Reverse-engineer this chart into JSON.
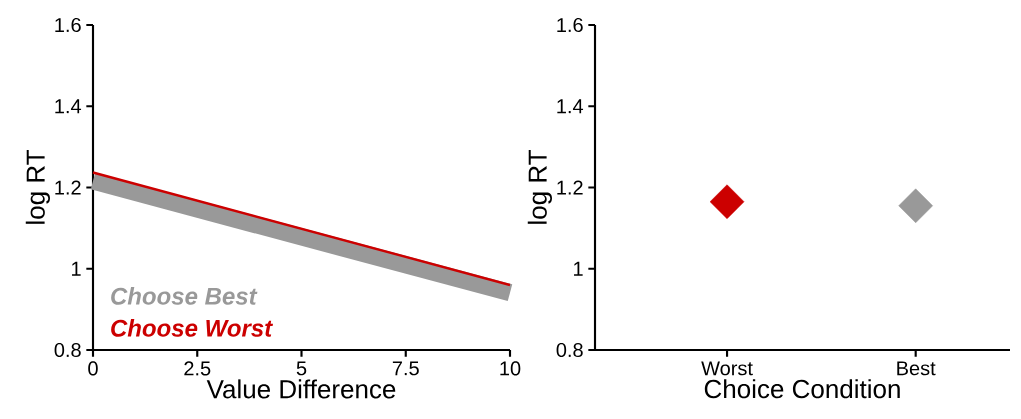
{
  "chart_data": [
    {
      "type": "line",
      "xlabel": "Value Difference",
      "ylabel": "log RT",
      "x": [
        0,
        10
      ],
      "xlim": [
        0,
        10
      ],
      "ylim": [
        0.8,
        1.6
      ],
      "xticks": [
        0,
        2.5,
        5,
        7.5,
        10
      ],
      "yticks": [
        0.8,
        1,
        1.2,
        1.4,
        1.6
      ],
      "legend": "bottom left",
      "series": [
        {
          "name": "Choose Best",
          "color": "#999999",
          "values": [
            1.216,
            0.941
          ]
        },
        {
          "name": "Choose Worst",
          "color": "#cc0000",
          "values": [
            1.237,
            0.96
          ]
        }
      ]
    },
    {
      "type": "scatter",
      "xlabel": "Choice Condition",
      "ylabel": "log RT",
      "categories": [
        "Worst",
        "Best"
      ],
      "values": [
        1.165,
        1.155
      ],
      "colors": [
        "#cc0000",
        "#999999"
      ],
      "marker": "diamond",
      "ylim": [
        0.8,
        1.6
      ],
      "yticks": [
        0.8,
        1,
        1.2,
        1.4,
        1.6
      ]
    }
  ]
}
